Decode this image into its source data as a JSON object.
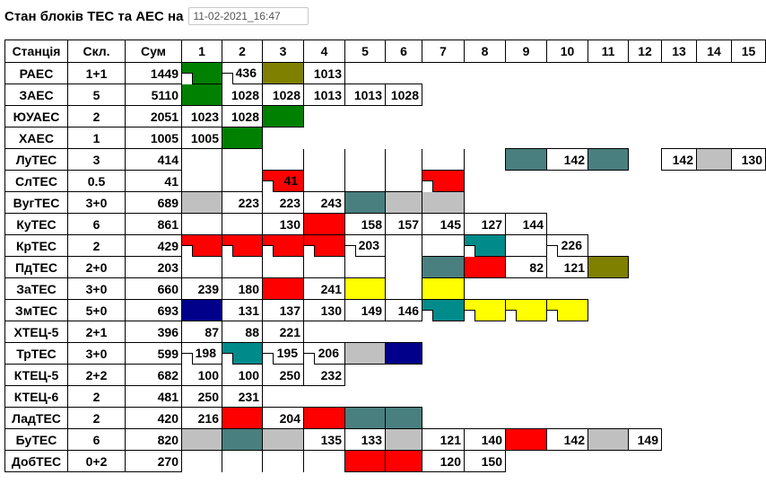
{
  "header": {
    "title": "Стан блоків ТЕС та АЕС на",
    "datetime": "11-02-2021_16:47"
  },
  "columns": [
    "Станція",
    "Скл.",
    "Сум",
    "1",
    "2",
    "3",
    "4",
    "5",
    "6",
    "7",
    "8",
    "9",
    "10",
    "11",
    "12",
    "13",
    "14",
    "15"
  ],
  "rows": [
    {
      "name": "РАЕС",
      "skl": "1+1",
      "sum": "1449",
      "cells": [
        [
          "g",
          "",
          1
        ],
        [
          "",
          "436",
          1
        ],
        [
          "ol",
          ""
        ],
        [
          "",
          "1013"
        ]
      ]
    },
    {
      "name": "ЗАЕС",
      "skl": "5",
      "sum": "5110",
      "cells": [
        [
          "g",
          ""
        ],
        [
          "",
          "1028"
        ],
        [
          "",
          "1028"
        ],
        [
          "",
          "1013"
        ],
        [
          "",
          "1013"
        ],
        [
          "",
          "1028"
        ]
      ]
    },
    {
      "name": "ЮУАЕС",
      "skl": "2",
      "sum": "2051",
      "cells": [
        [
          "",
          "1023"
        ],
        [
          "",
          "1028"
        ],
        [
          "g",
          ""
        ]
      ]
    },
    {
      "name": "ХАЕС",
      "skl": "1",
      "sum": "1005",
      "cells": [
        [
          "",
          "1005"
        ],
        [
          "g",
          ""
        ]
      ]
    },
    {
      "name": "ЛуТЕС",
      "skl": "3",
      "sum": "414",
      "cells": [
        null,
        null,
        null,
        null,
        null,
        null,
        null,
        null,
        [
          "tl",
          ""
        ],
        [
          "",
          "142"
        ],
        [
          "tl",
          ""
        ],
        null,
        [
          "",
          "142"
        ],
        [
          "gr",
          ""
        ],
        [
          "",
          "130"
        ]
      ]
    },
    {
      "name": "СлТЕС",
      "skl": "0.5",
      "sum": "41",
      "cells": [
        null,
        null,
        [
          "r",
          "41",
          1
        ],
        null,
        null,
        null,
        [
          "r",
          "",
          1
        ]
      ]
    },
    {
      "name": "ВугТЕС",
      "skl": "3+0",
      "sum": "689",
      "cells": [
        [
          "gr",
          ""
        ],
        [
          "",
          "223"
        ],
        [
          "",
          "223"
        ],
        [
          "",
          "243"
        ],
        [
          "tl",
          ""
        ],
        [
          "gr",
          ""
        ],
        [
          "gr",
          ""
        ]
      ]
    },
    {
      "name": "КуТЕС",
      "skl": "6",
      "sum": "861",
      "cells": [
        null,
        null,
        [
          "",
          "130"
        ],
        [
          "r",
          ""
        ],
        [
          "",
          "158"
        ],
        [
          "",
          "157"
        ],
        [
          "",
          "145"
        ],
        [
          "",
          "127"
        ],
        [
          "",
          "144"
        ]
      ]
    },
    {
      "name": "КрТЕС",
      "skl": "2",
      "sum": "429",
      "cells": [
        [
          "r",
          "",
          1
        ],
        [
          "r",
          "",
          1
        ],
        [
          "r",
          "",
          1
        ],
        [
          "r",
          "",
          1
        ],
        [
          "",
          "203",
          1
        ],
        null,
        null,
        [
          "tq",
          "",
          1
        ],
        null,
        [
          "",
          "226",
          1
        ]
      ]
    },
    {
      "name": "ПдТЕС",
      "skl": "2+0",
      "sum": "203",
      "cells": [
        null,
        null,
        null,
        null,
        null,
        null,
        [
          "tl",
          ""
        ],
        [
          "r",
          ""
        ],
        [
          "",
          "82"
        ],
        [
          "",
          "121"
        ],
        [
          "ol",
          ""
        ]
      ]
    },
    {
      "name": "ЗаТЕС",
      "skl": "3+0",
      "sum": "660",
      "cells": [
        [
          "",
          "239"
        ],
        [
          "",
          "180"
        ],
        [
          "r",
          ""
        ],
        [
          "",
          "241"
        ],
        [
          "y",
          ""
        ],
        null,
        [
          "y",
          ""
        ]
      ]
    },
    {
      "name": "ЗмТЕС",
      "skl": "5+0",
      "sum": "693",
      "cells": [
        [
          "nv",
          ""
        ],
        [
          "",
          "131"
        ],
        [
          "",
          "137"
        ],
        [
          "",
          "130"
        ],
        [
          "",
          "149"
        ],
        [
          "",
          "146"
        ],
        [
          "tq",
          "",
          1
        ],
        [
          "y",
          "",
          1
        ],
        [
          "y",
          "",
          1
        ],
        [
          "y",
          "",
          1
        ]
      ]
    },
    {
      "name": "ХТЕЦ-5",
      "skl": "2+1",
      "sum": "396",
      "cells": [
        [
          "",
          "87"
        ],
        [
          "",
          "88"
        ],
        [
          "",
          "221"
        ]
      ]
    },
    {
      "name": "ТрТЕС",
      "skl": "3+0",
      "sum": "599",
      "cells": [
        [
          "",
          "198",
          1
        ],
        [
          "tq",
          "",
          1
        ],
        [
          "",
          "195",
          1
        ],
        [
          "",
          "206",
          1
        ],
        [
          "gr",
          ""
        ],
        [
          "nv",
          ""
        ]
      ]
    },
    {
      "name": "КТЕЦ-5",
      "skl": "2+2",
      "sum": "682",
      "cells": [
        [
          "",
          "100"
        ],
        [
          "",
          "100"
        ],
        [
          "",
          "250"
        ],
        [
          "",
          "232"
        ]
      ]
    },
    {
      "name": "КТЕЦ-6",
      "skl": "2",
      "sum": "481",
      "cells": [
        [
          "",
          "250"
        ],
        [
          "",
          "231"
        ]
      ]
    },
    {
      "name": "ЛадТЕС",
      "skl": "2",
      "sum": "420",
      "cells": [
        [
          "",
          "216"
        ],
        [
          "r",
          ""
        ],
        [
          "",
          "204"
        ],
        [
          "r",
          ""
        ],
        [
          "tl",
          ""
        ],
        [
          "tl",
          ""
        ]
      ]
    },
    {
      "name": "БуТЕС",
      "skl": "6",
      "sum": "820",
      "cells": [
        [
          "gr",
          ""
        ],
        [
          "tl",
          ""
        ],
        [
          "gr",
          ""
        ],
        [
          "",
          "135"
        ],
        [
          "",
          "133"
        ],
        [
          "gr",
          ""
        ],
        [
          "",
          "121"
        ],
        [
          "",
          "140"
        ],
        [
          "r",
          ""
        ],
        [
          "",
          "142"
        ],
        [
          "gr",
          ""
        ],
        [
          "",
          "149"
        ]
      ]
    },
    {
      "name": "ДобТЕС",
      "skl": "0+2",
      "sum": "270",
      "cells": [
        null,
        null,
        null,
        null,
        [
          "r",
          ""
        ],
        [
          "r",
          ""
        ],
        [
          "",
          "120"
        ],
        [
          "",
          "150"
        ]
      ]
    }
  ],
  "colors": {
    "g": "#008000",
    "ol": "#808000",
    "tl": "#4a7f7f",
    "tq": "#008b8b",
    "gr": "#c0c0c0",
    "r": "#ff0000",
    "y": "#ffff00",
    "nv": "#00008b"
  }
}
